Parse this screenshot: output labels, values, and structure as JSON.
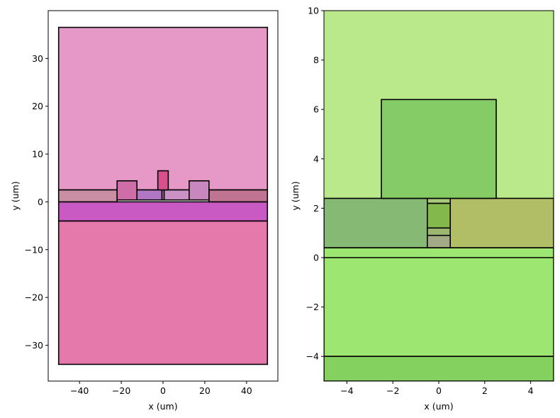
{
  "chart_data": [
    {
      "type": "cross-section",
      "title": "",
      "xlabel": "x (um)",
      "ylabel": "y (um)",
      "xlim": [
        -55,
        55
      ],
      "ylim": [
        -37.5,
        40
      ],
      "xticks": [
        -40,
        -20,
        0,
        20,
        40
      ],
      "yticks": [
        -30,
        -20,
        -10,
        0,
        10,
        20,
        30
      ],
      "rects": [
        {
          "name": "upper-cladding",
          "x0": -50,
          "x1": 50,
          "y0": 2.5,
          "y1": 36.5,
          "color": "#e699c7",
          "stroke": "#000000"
        },
        {
          "name": "substrate",
          "x0": -50,
          "x1": 50,
          "y0": -34,
          "y1": -4,
          "color": "#e579ab",
          "stroke": "#000000"
        },
        {
          "name": "buried-oxide",
          "x0": -50,
          "x1": 50,
          "y0": -4,
          "y1": 0,
          "color": "#c95ac4",
          "stroke": "#000000"
        },
        {
          "name": "slab-left",
          "x0": -50,
          "x1": -22,
          "y0": 0,
          "y1": 2.5,
          "color": "#c98ea3",
          "stroke": "#000000"
        },
        {
          "name": "slab-right",
          "x0": 22,
          "x1": 50,
          "y0": 0,
          "y1": 2.5,
          "color": "#bf7491",
          "stroke": "#000000"
        },
        {
          "name": "slab-inner-left",
          "x0": -12.5,
          "x1": -0.5,
          "y0": 0.4,
          "y1": 2.5,
          "color": "#b277c4",
          "stroke": "#000000"
        },
        {
          "name": "slab-inner-right",
          "x0": 0.5,
          "x1": 12.5,
          "y0": 0.4,
          "y1": 2.5,
          "color": "#c991c4",
          "stroke": "#000000"
        },
        {
          "name": "pad-left",
          "x0": -22,
          "x1": -12.5,
          "y0": 0.4,
          "y1": 4.4,
          "color": "#cf6da8",
          "stroke": "#000000"
        },
        {
          "name": "pad-right",
          "x0": 12.5,
          "x1": 22,
          "y0": 0.4,
          "y1": 4.4,
          "color": "#c887bd",
          "stroke": "#000000"
        },
        {
          "name": "rib-core",
          "x0": -0.5,
          "x1": 0.5,
          "y0": 0.4,
          "y1": 2.5,
          "color": "#c57ab5",
          "stroke": "#000000"
        },
        {
          "name": "electrode",
          "x0": -2.5,
          "x1": 2.5,
          "y0": 2.5,
          "y1": 6.5,
          "color": "#d9518c",
          "stroke": "#000000"
        }
      ]
    },
    {
      "type": "cross-section",
      "title": "",
      "xlabel": "x (um)",
      "ylabel": "y (um)",
      "xlim": [
        -5,
        5
      ],
      "ylim": [
        -5,
        10
      ],
      "xticks": [
        -4,
        -2,
        0,
        2,
        4
      ],
      "yticks": [
        -4,
        -2,
        0,
        2,
        4,
        6,
        8,
        10
      ],
      "rects": [
        {
          "name": "background-top",
          "x0": -5,
          "x1": 5,
          "y0": 2.4,
          "y1": 10,
          "color": "#b9e98a",
          "stroke": "none"
        },
        {
          "name": "lower-region",
          "x0": -5,
          "x1": 5,
          "y0": -4,
          "y1": 0.4,
          "color": "#9ee672",
          "stroke": "#000000"
        },
        {
          "name": "substrate",
          "x0": -5,
          "x1": 5,
          "y0": -5,
          "y1": -4,
          "color": "#84d160",
          "stroke": "#000000"
        },
        {
          "name": "slab-left",
          "x0": -5,
          "x1": -0.5,
          "y0": 0.4,
          "y1": 2.4,
          "color": "#86ba74",
          "stroke": "#000000"
        },
        {
          "name": "slab-right",
          "x0": 0.5,
          "x1": 5,
          "y0": 0.4,
          "y1": 2.4,
          "color": "#b1be66",
          "stroke": "#000000"
        },
        {
          "name": "rib-bottom",
          "x0": -0.5,
          "x1": 0.5,
          "y0": 0.4,
          "y1": 0.9,
          "color": "#a3ab86",
          "stroke": "#000000"
        },
        {
          "name": "rib-mid",
          "x0": -0.5,
          "x1": 0.5,
          "y0": 0.9,
          "y1": 1.2,
          "color": "#9cb870",
          "stroke": "#000000"
        },
        {
          "name": "rib-core",
          "x0": -0.5,
          "x1": 0.5,
          "y0": 1.2,
          "y1": 2.2,
          "color": "#82b84c",
          "stroke": "#000000"
        },
        {
          "name": "rib-top",
          "x0": -0.5,
          "x1": 0.5,
          "y0": 2.2,
          "y1": 2.4,
          "color": "#a9c97a",
          "stroke": "#000000"
        },
        {
          "name": "electrode",
          "x0": -2.5,
          "x1": 2.5,
          "y0": 2.4,
          "y1": 6.4,
          "color": "#86cc66",
          "stroke": "#000000"
        }
      ],
      "lines": [
        {
          "name": "interface-y0",
          "y": 0
        }
      ]
    }
  ]
}
